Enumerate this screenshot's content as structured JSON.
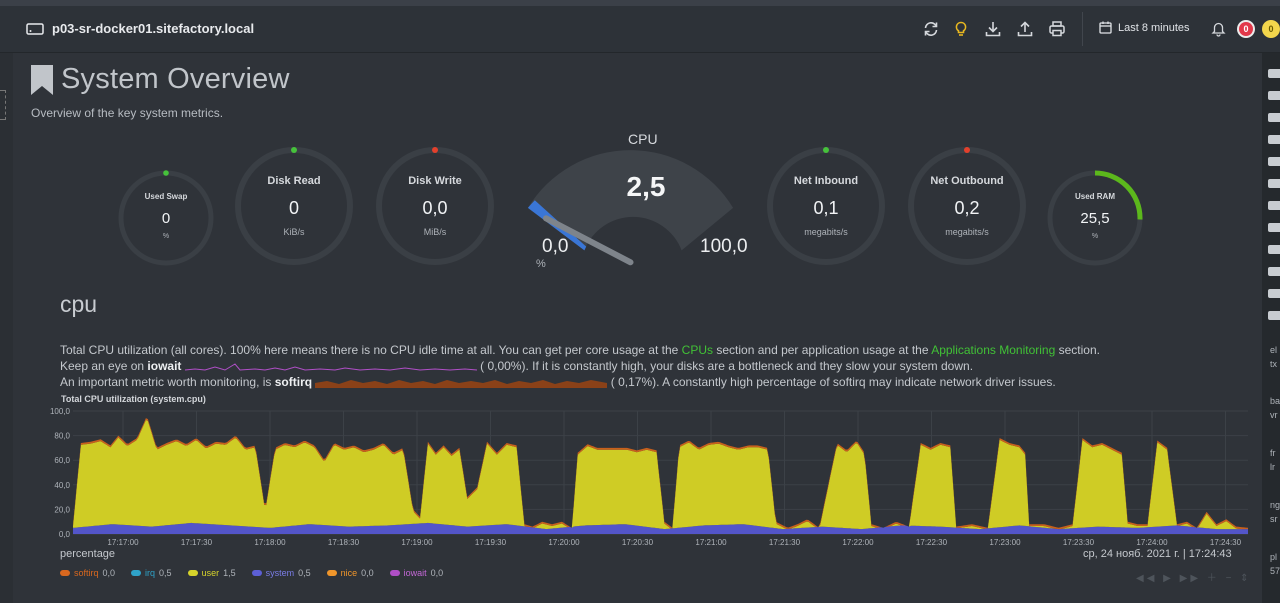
{
  "host": {
    "name": "p03-sr-docker01.sitefactory.local"
  },
  "toolbar": {
    "icons": [
      "sync-icon",
      "lightbulb-icon",
      "download-icon",
      "upload-icon",
      "print-icon"
    ],
    "time_range": "Last 8 minutes",
    "alerts_red": "0",
    "alerts_yellow": "0"
  },
  "page": {
    "title": "System Overview",
    "subtitle": "Overview of the key system metrics."
  },
  "gauges": {
    "swap": {
      "title": "Used Swap",
      "value": "0",
      "unit": "%"
    },
    "disk_read": {
      "title": "Disk Read",
      "value": "0",
      "unit": "KiB/s"
    },
    "disk_write": {
      "title": "Disk Write",
      "value": "0,0",
      "unit": "MiB/s"
    },
    "net_in": {
      "title": "Net Inbound",
      "value": "0,1",
      "unit": "megabits/s"
    },
    "net_out": {
      "title": "Net Outbound",
      "value": "0,2",
      "unit": "megabits/s"
    },
    "ram": {
      "title": "Used RAM",
      "value": "25,5",
      "unit": "%",
      "fraction": 0.255
    }
  },
  "cpu_gauge": {
    "title": "CPU",
    "value": "2,5",
    "min": "0,0",
    "max": "100,0",
    "unit": "%",
    "fraction": 0.025
  },
  "cpu_section": {
    "title": "cpu",
    "desc_1": "Total CPU utilization (all cores). 100% here means there is no CPU idle time at all. You can get per core usage at the",
    "link_cpus": "CPUs",
    "desc_2": "section and per application usage at the",
    "link_apps": "Applications Monitoring",
    "desc_3": "section.",
    "iowait_pre": "Keep an eye on",
    "iowait_word": "iowait",
    "iowait_val": "(      0,00%). If it is constantly high, your disks are a bottleneck and they slow your system down.",
    "softirq_pre": "An important metric worth monitoring, is",
    "softirq_word": "softirq",
    "softirq_val": "(      0,17%). A constantly high percentage of softirq may indicate network driver issues."
  },
  "chart_data": {
    "type": "area",
    "title": "Total CPU utilization (system.cpu)",
    "ylabel": "percentage",
    "ylim": [
      0,
      100
    ],
    "yticks": [
      "100,0",
      "80,0",
      "60,0",
      "40,0",
      "20,0",
      "0,0"
    ],
    "xticks": [
      "17:17:00",
      "17:17:30",
      "17:18:00",
      "17:18:30",
      "17:19:00",
      "17:19:30",
      "17:20:00",
      "17:20:30",
      "17:21:00",
      "17:21:30",
      "17:22:00",
      "17:22:30",
      "17:23:00",
      "17:23:30",
      "17:24:00",
      "17:24:30"
    ],
    "timestamp": "ср, 24 нояб. 2021 г. | 17:24:43",
    "series": [
      {
        "name": "softirq",
        "color": "#d9681f",
        "current": "0,0"
      },
      {
        "name": "irq",
        "color": "#2fa3c9",
        "current": "0,5"
      },
      {
        "name": "user",
        "color": "#d7d42b",
        "current": "1,5"
      },
      {
        "name": "system",
        "color": "#5c5fd6",
        "current": "0,5"
      },
      {
        "name": "nice",
        "color": "#f0962b",
        "current": "0,0"
      },
      {
        "name": "iowait",
        "color": "#b04fc7",
        "current": "0,0"
      }
    ],
    "total_profile": [
      [
        0,
        8
      ],
      [
        8,
        74
      ],
      [
        18,
        75
      ],
      [
        28,
        77
      ],
      [
        38,
        72
      ],
      [
        46,
        80
      ],
      [
        55,
        73
      ],
      [
        65,
        78
      ],
      [
        75,
        96
      ],
      [
        85,
        70
      ],
      [
        95,
        74
      ],
      [
        105,
        77
      ],
      [
        115,
        73
      ],
      [
        125,
        78
      ],
      [
        135,
        71
      ],
      [
        145,
        75
      ],
      [
        155,
        74
      ],
      [
        165,
        80
      ],
      [
        175,
        70
      ],
      [
        185,
        72
      ],
      [
        195,
        20
      ],
      [
        205,
        70
      ],
      [
        215,
        74
      ],
      [
        225,
        72
      ],
      [
        235,
        76
      ],
      [
        245,
        72
      ],
      [
        255,
        60
      ],
      [
        265,
        74
      ],
      [
        275,
        70
      ],
      [
        285,
        72
      ],
      [
        295,
        68
      ],
      [
        305,
        70
      ],
      [
        315,
        74
      ],
      [
        325,
        66
      ],
      [
        335,
        70
      ],
      [
        345,
        20
      ],
      [
        352,
        14
      ],
      [
        360,
        75
      ],
      [
        368,
        66
      ],
      [
        376,
        72
      ],
      [
        384,
        65
      ],
      [
        392,
        70
      ],
      [
        400,
        30
      ],
      [
        410,
        38
      ],
      [
        420,
        75
      ],
      [
        430,
        66
      ],
      [
        440,
        74
      ],
      [
        450,
        72
      ],
      [
        458,
        8
      ],
      [
        466,
        6
      ],
      [
        476,
        10
      ],
      [
        486,
        8
      ],
      [
        496,
        10
      ],
      [
        506,
        5
      ],
      [
        512,
        66
      ],
      [
        522,
        73
      ],
      [
        532,
        70
      ],
      [
        542,
        70
      ],
      [
        552,
        70
      ],
      [
        562,
        70
      ],
      [
        572,
        68
      ],
      [
        582,
        70
      ],
      [
        592,
        68
      ],
      [
        600,
        10
      ],
      [
        608,
        5
      ],
      [
        615,
        72
      ],
      [
        625,
        76
      ],
      [
        635,
        70
      ],
      [
        645,
        74
      ],
      [
        655,
        75
      ],
      [
        665,
        72
      ],
      [
        675,
        70
      ],
      [
        685,
        72
      ],
      [
        695,
        72
      ],
      [
        705,
        70
      ],
      [
        713,
        10
      ],
      [
        725,
        5
      ],
      [
        735,
        8
      ],
      [
        745,
        12
      ],
      [
        757,
        5
      ],
      [
        775,
        74
      ],
      [
        785,
        68
      ],
      [
        795,
        76
      ],
      [
        803,
        66
      ],
      [
        810,
        8
      ],
      [
        822,
        5
      ],
      [
        835,
        10
      ],
      [
        848,
        6
      ],
      [
        860,
        74
      ],
      [
        870,
        70
      ],
      [
        880,
        74
      ],
      [
        890,
        72
      ],
      [
        896,
        6
      ],
      [
        912,
        8
      ],
      [
        928,
        5
      ],
      [
        940,
        78
      ],
      [
        950,
        74
      ],
      [
        960,
        72
      ],
      [
        966,
        66
      ],
      [
        970,
        8
      ],
      [
        985,
        8
      ],
      [
        1000,
        5
      ],
      [
        1014,
        8
      ],
      [
        1024,
        78
      ],
      [
        1034,
        72
      ],
      [
        1044,
        74
      ],
      [
        1054,
        70
      ],
      [
        1064,
        66
      ],
      [
        1070,
        10
      ],
      [
        1080,
        8
      ],
      [
        1090,
        8
      ],
      [
        1100,
        76
      ],
      [
        1110,
        70
      ],
      [
        1120,
        8
      ],
      [
        1130,
        10
      ],
      [
        1140,
        5
      ],
      [
        1150,
        18
      ],
      [
        1160,
        8
      ],
      [
        1170,
        12
      ],
      [
        1180,
        6
      ],
      [
        1192,
        5
      ]
    ],
    "system_profile": [
      [
        0,
        5
      ],
      [
        40,
        8
      ],
      [
        80,
        6
      ],
      [
        120,
        9
      ],
      [
        160,
        7
      ],
      [
        200,
        5
      ],
      [
        240,
        8
      ],
      [
        280,
        6
      ],
      [
        320,
        7
      ],
      [
        360,
        9
      ],
      [
        400,
        6
      ],
      [
        440,
        8
      ],
      [
        480,
        4
      ],
      [
        520,
        7
      ],
      [
        560,
        8
      ],
      [
        600,
        4
      ],
      [
        640,
        7
      ],
      [
        680,
        8
      ],
      [
        720,
        4
      ],
      [
        760,
        6
      ],
      [
        800,
        4
      ],
      [
        840,
        7
      ],
      [
        880,
        6
      ],
      [
        920,
        4
      ],
      [
        960,
        7
      ],
      [
        1000,
        4
      ],
      [
        1040,
        6
      ],
      [
        1080,
        5
      ],
      [
        1120,
        7
      ],
      [
        1160,
        4
      ],
      [
        1192,
        4
      ]
    ]
  },
  "right_sidebar": {
    "texts": [
      "el",
      "tx",
      "ba",
      "vr",
      "fr",
      "lr",
      "ng",
      "sr",
      "pl",
      "57"
    ]
  }
}
